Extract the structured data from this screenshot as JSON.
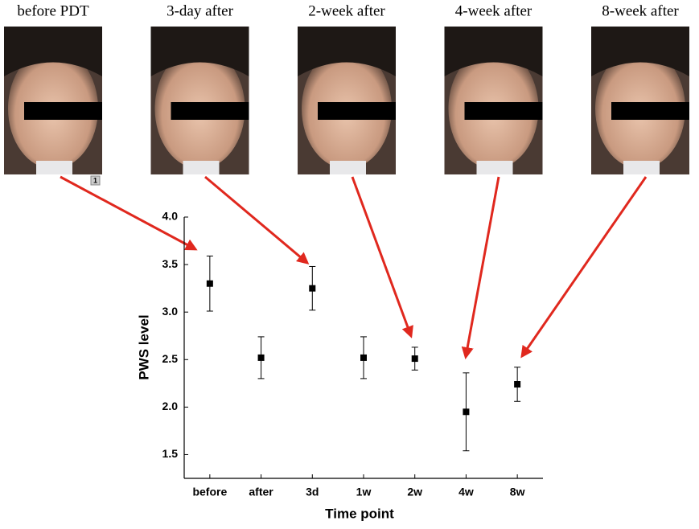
{
  "panels": {
    "labels": [
      "before PDT",
      "3-day after",
      "2-week after",
      "4-week after",
      "8-week after"
    ],
    "badge": "1"
  },
  "chart_data": {
    "type": "errorbar",
    "x_label": "Time point",
    "y_label": "PWS level",
    "categories": [
      "before",
      "after",
      "3d",
      "1w",
      "2w",
      "4w",
      "8w"
    ],
    "values": [
      3.3,
      2.52,
      3.25,
      2.52,
      2.51,
      1.95,
      2.24
    ],
    "errors": [
      0.29,
      0.22,
      0.23,
      0.22,
      0.12,
      0.41,
      0.18
    ],
    "color": "#000000",
    "ylim": [
      1.25,
      4.0
    ],
    "yticks": [
      1.5,
      {
        "value": 2.0,
        "label": "2.0"
      },
      2.5,
      {
        "value": 3.0,
        "label": "3.0"
      },
      3.5,
      {
        "value": 4.0,
        "label": "4.0"
      }
    ]
  }
}
